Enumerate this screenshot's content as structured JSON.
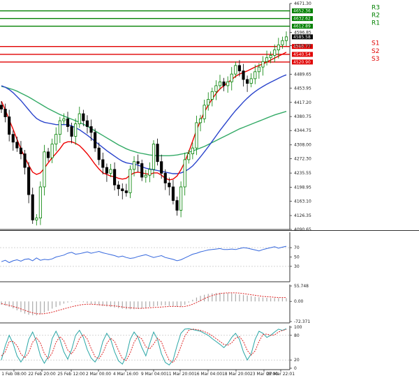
{
  "chart_data": {
    "type": "candlestick",
    "main_panel": {
      "ylim": [
        4090.65,
        4671.3
      ],
      "y_ticks": [
        "4671.30",
        "4596.85",
        "4562.98",
        "4489.65",
        "4453.95",
        "4417.20",
        "4380.75",
        "4344.75",
        "4308.00",
        "4272.30",
        "4235.55",
        "4198.95",
        "4163.10",
        "4126.35",
        "4090.65"
      ],
      "last_price": "4585.58",
      "levels": [
        {
          "name": "R3",
          "value": 4652.36,
          "label": "4652.36",
          "color": "#008000"
        },
        {
          "name": "R2",
          "value": 4632.62,
          "label": "4632.62",
          "color": "#008000"
        },
        {
          "name": "R1",
          "value": 4612.89,
          "label": "4612.89",
          "color": "#008000"
        },
        {
          "name": "S1",
          "value": 4560.77,
          "label": "4560.77",
          "color": "#e00000"
        },
        {
          "name": "S2",
          "value": 4540.54,
          "label": "4540.54",
          "color": "#e00000"
        },
        {
          "name": "S3",
          "value": 4520.9,
          "label": "4520.90",
          "color": "#e00000"
        }
      ],
      "close_series": [
        4400,
        4380,
        4335,
        4315,
        4300,
        4285,
        4250,
        4180,
        4115,
        4120,
        4200,
        4290,
        4275,
        4310,
        4335,
        4370,
        4375,
        4355,
        4330,
        4362,
        4388,
        4370,
        4355,
        4340,
        4300,
        4270,
        4250,
        4235,
        4245,
        4205,
        4195,
        4190,
        4185,
        4245,
        4265,
        4260,
        4225,
        4230,
        4245,
        4310,
        4265,
        4235,
        4210,
        4200,
        4165,
        4140,
        4200,
        4270,
        4285,
        4300,
        4365,
        4375,
        4410,
        4425,
        4445,
        4460,
        4470,
        4460,
        4470,
        4490,
        4512,
        4498,
        4476,
        4466,
        4478,
        4496,
        4508,
        4522,
        4532,
        4538,
        4552,
        4565,
        4576,
        4585.58
      ],
      "ma_red": [
        4420,
        4398,
        4372,
        4348,
        4322,
        4298,
        4276,
        4256,
        4238,
        4232,
        4236,
        4248,
        4262,
        4275,
        4286,
        4298,
        4312,
        4316,
        4316,
        4312,
        4306,
        4296,
        4285,
        4272,
        4258,
        4246,
        4236,
        4232,
        4228,
        4226,
        4222,
        4220,
        4222,
        4230,
        4236,
        4238,
        4236,
        4234,
        4232,
        4236,
        4236,
        4230,
        4222,
        4218,
        4220,
        4228,
        4244,
        4264,
        4290,
        4318,
        4346,
        4370,
        4392,
        4410,
        4426,
        4440,
        4452,
        4460,
        4468,
        4476,
        4484,
        4490,
        4494,
        4498,
        4503,
        4508,
        4512,
        4516,
        4521,
        4526,
        4531,
        4536,
        4541,
        4546
      ],
      "ma_blue": [
        4460,
        4456,
        4450,
        4442,
        4432,
        4422,
        4410,
        4398,
        4386,
        4376,
        4370,
        4366,
        4364,
        4362,
        4360,
        4360,
        4360,
        4360,
        4357,
        4352,
        4347,
        4340,
        4333,
        4325,
        4317,
        4309,
        4301,
        4293,
        4286,
        4279,
        4272,
        4266,
        4262,
        4260,
        4258,
        4256,
        4252,
        4248,
        4246,
        4244,
        4242,
        4240,
        4238,
        4236,
        4234,
        4234,
        4236,
        4240,
        4246,
        4254,
        4265,
        4277,
        4290,
        4303,
        4317,
        4331,
        4345,
        4358,
        4371,
        4384,
        4396,
        4407,
        4418,
        4428,
        4437,
        4445,
        4452,
        4458,
        4464,
        4469,
        4474,
        4479,
        4484,
        4488
      ],
      "ma_green": [
        4458,
        4456,
        4453,
        4450,
        4446,
        4441,
        4436,
        4431,
        4425,
        4419,
        4413,
        4407,
        4401,
        4396,
        4391,
        4386,
        4382,
        4378,
        4374,
        4370,
        4366,
        4361,
        4356,
        4350,
        4344,
        4338,
        4332,
        4326,
        4320,
        4314,
        4308,
        4303,
        4298,
        4294,
        4291,
        4288,
        4286,
        4284,
        4282,
        4281,
        4280,
        4280,
        4280,
        4280,
        4281,
        4282,
        4284,
        4286,
        4289,
        4292,
        4296,
        4300,
        4304,
        4309,
        4314,
        4319,
        4324,
        4329,
        4334,
        4339,
        4344,
        4349,
        4353,
        4357,
        4361,
        4365,
        4369,
        4373,
        4377,
        4381,
        4385,
        4388,
        4391,
        4394
      ]
    },
    "rsi_panel": {
      "ylim": [
        0,
        100
      ],
      "y_ticks": [
        "70",
        "50",
        "30"
      ],
      "levels": [
        70,
        30
      ],
      "series": [
        40,
        43,
        38,
        42,
        44,
        41,
        45,
        46,
        42,
        48,
        43,
        45,
        44,
        46,
        50,
        52,
        54,
        58,
        60,
        56,
        57,
        59,
        61,
        58,
        60,
        62,
        59,
        57,
        55,
        53,
        50,
        52,
        49,
        47,
        48,
        51,
        53,
        55,
        52,
        49,
        51,
        53,
        49,
        47,
        45,
        42,
        44,
        48,
        52,
        56,
        58,
        61,
        63,
        65,
        66,
        67,
        68,
        66,
        66,
        67,
        66,
        68,
        70,
        69,
        67,
        65,
        63,
        66,
        68,
        70,
        72,
        69,
        71,
        73
      ]
    },
    "macd_panel": {
      "ylim": [
        -72.371,
        55.748
      ],
      "y_ticks": [
        "55.748",
        "0.00",
        "-72.371"
      ],
      "histogram": [
        -12,
        -15,
        -20,
        -25,
        -32,
        -38,
        -44,
        -48,
        -50,
        -50,
        -46,
        -40,
        -34,
        -26,
        -20,
        -14,
        -8,
        -4,
        -2,
        -1,
        -1,
        -3,
        -6,
        -9,
        -12,
        -14,
        -16,
        -18,
        -20,
        -22,
        -24,
        -26,
        -28,
        -28,
        -28,
        -27,
        -25,
        -23,
        -20,
        -18,
        -16,
        -14,
        -14,
        -16,
        -18,
        -20,
        -18,
        -12,
        -4,
        6,
        14,
        20,
        24,
        27,
        29,
        30,
        31,
        31,
        30,
        29,
        27,
        25,
        23,
        21,
        19,
        17,
        15,
        14,
        13,
        12,
        12,
        12,
        12,
        12
      ],
      "signal": [
        -8,
        -11,
        -14,
        -18,
        -22,
        -27,
        -32,
        -37,
        -41,
        -44,
        -45,
        -44,
        -42,
        -39,
        -35,
        -31,
        -27,
        -23,
        -19,
        -16,
        -13,
        -11,
        -10,
        -10,
        -11,
        -12,
        -13,
        -14,
        -15,
        -16,
        -18,
        -20,
        -22,
        -23,
        -24,
        -25,
        -25,
        -24,
        -23,
        -22,
        -21,
        -20,
        -19,
        -18,
        -18,
        -18,
        -19,
        -18,
        -15,
        -10,
        -4,
        3,
        10,
        16,
        21,
        25,
        28,
        30,
        31,
        31,
        31,
        30,
        28,
        26,
        24,
        22,
        20,
        18,
        17,
        16,
        15,
        14,
        14,
        14
      ]
    },
    "stoch_panel": {
      "ylim": [
        0,
        100
      ],
      "y_ticks": [
        "100",
        "80",
        "20",
        "0"
      ],
      "levels": [
        80,
        20
      ],
      "k": [
        20,
        55,
        80,
        60,
        30,
        15,
        30,
        70,
        88,
        65,
        30,
        12,
        28,
        72,
        90,
        70,
        40,
        22,
        45,
        80,
        92,
        75,
        45,
        25,
        15,
        30,
        65,
        85,
        70,
        40,
        18,
        10,
        30,
        70,
        88,
        75,
        50,
        30,
        60,
        88,
        70,
        35,
        14,
        8,
        20,
        55,
        85,
        95,
        96,
        94,
        92,
        90,
        85,
        80,
        72,
        65,
        58,
        50,
        60,
        75,
        85,
        70,
        40,
        20,
        35,
        70,
        90,
        85,
        75,
        80,
        88,
        95,
        92,
        96
      ],
      "d": [
        30,
        40,
        65,
        65,
        55,
        35,
        25,
        38,
        63,
        74,
        61,
        36,
        23,
        37,
        63,
        77,
        67,
        44,
        35,
        49,
        72,
        82,
        71,
        48,
        28,
        23,
        37,
        60,
        73,
        65,
        43,
        23,
        19,
        37,
        63,
        78,
        71,
        52,
        47,
        59,
        73,
        64,
        40,
        19,
        14,
        28,
        53,
        78,
        92,
        95,
        94,
        92,
        89,
        85,
        79,
        72,
        65,
        58,
        56,
        62,
        73,
        77,
        65,
        43,
        32,
        42,
        65,
        82,
        83,
        80,
        81,
        88,
        92,
        94
      ]
    },
    "x_ticks": [
      "1 Feb 08:00",
      "22 Feb 20:00",
      "25 Feb 12:00",
      "2 Mar 00:00",
      "4 Mar 16:00",
      "9 Mar 04:00",
      "11 Mar 20:00",
      "16 Mar 04:00",
      "18 Mar 20:00",
      "23 Mar 08:00",
      "27 Mar 22:01"
    ],
    "colors": {
      "bull": "#008000",
      "bear": "#000000",
      "ma_red": "#ee0000",
      "ma_blue": "#2a44cc",
      "ma_green": "#33aa66",
      "rsi": "#3366dd",
      "macd_hist": "#aaaaaa",
      "macd_signal": "#dd2222",
      "stoch_k": "#2aa6a6",
      "stoch_d": "#dd2222"
    }
  }
}
